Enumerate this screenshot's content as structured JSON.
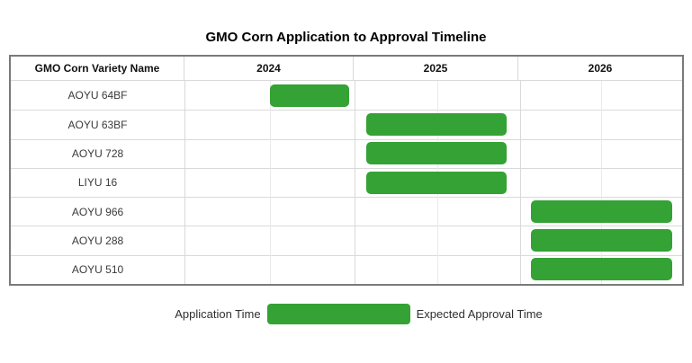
{
  "title": "GMO Corn Application to Approval Timeline",
  "table": {
    "name_column_header": "GMO Corn Variety Name",
    "year_headers": [
      "2024",
      "2025",
      "2026"
    ]
  },
  "legend": {
    "left_label": "Application Time",
    "right_label": "Expected Approval Time"
  },
  "colors": {
    "bar_green": "#34a234",
    "grid_line": "#d9d9d9",
    "sub_grid_line": "#ebebeb",
    "outer_border": "#7a7a7a"
  },
  "chart_data": {
    "type": "bar",
    "subtype": "gantt-timeline",
    "title": "GMO Corn Application to Approval Timeline",
    "x_axis": {
      "unit": "year",
      "tick_labels": [
        "2024",
        "2025",
        "2026"
      ],
      "range": [
        2024,
        2027
      ],
      "sub_divisions_per_year": 2
    },
    "bar_meaning": {
      "start": "Application Time",
      "end": "Expected Approval Time"
    },
    "rows": [
      {
        "name": "AOYU 64BF",
        "bar": {
          "start": 2024.5,
          "end": 2024.97
        }
      },
      {
        "name": "AOYU 63BF",
        "bar": {
          "start": 2025.07,
          "end": 2025.92
        }
      },
      {
        "name": "AOYU 728",
        "bar": {
          "start": 2025.07,
          "end": 2025.92
        }
      },
      {
        "name": "LIYU 16",
        "bar": {
          "start": 2025.07,
          "end": 2025.92
        }
      },
      {
        "name": "AOYU 966",
        "bar": {
          "start": 2026.07,
          "end": 2026.94
        }
      },
      {
        "name": "AOYU 288",
        "bar": {
          "start": 2026.07,
          "end": 2026.94
        }
      },
      {
        "name": "AOYU 510",
        "bar": {
          "start": 2026.07,
          "end": 2026.94
        }
      }
    ],
    "legend": [
      "Application Time",
      "Expected Approval Time"
    ],
    "bar_color": "#34a234",
    "grid": true,
    "legend_position": "bottom-center"
  }
}
